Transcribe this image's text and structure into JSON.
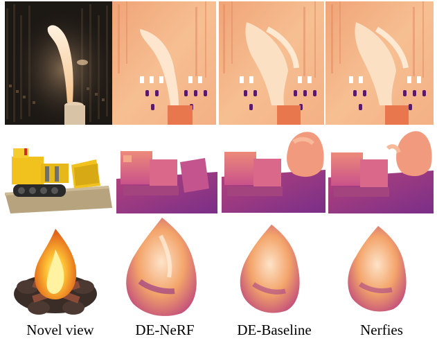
{
  "figure": {
    "columns": [
      {
        "label": "Novel view"
      },
      {
        "label": "DE-NeRF"
      },
      {
        "label": "DE-Baseline"
      },
      {
        "label": "Nerfies"
      }
    ],
    "rows": [
      {
        "scene": "candle"
      },
      {
        "scene": "lego bulldozer"
      },
      {
        "scene": "campfire"
      }
    ]
  }
}
